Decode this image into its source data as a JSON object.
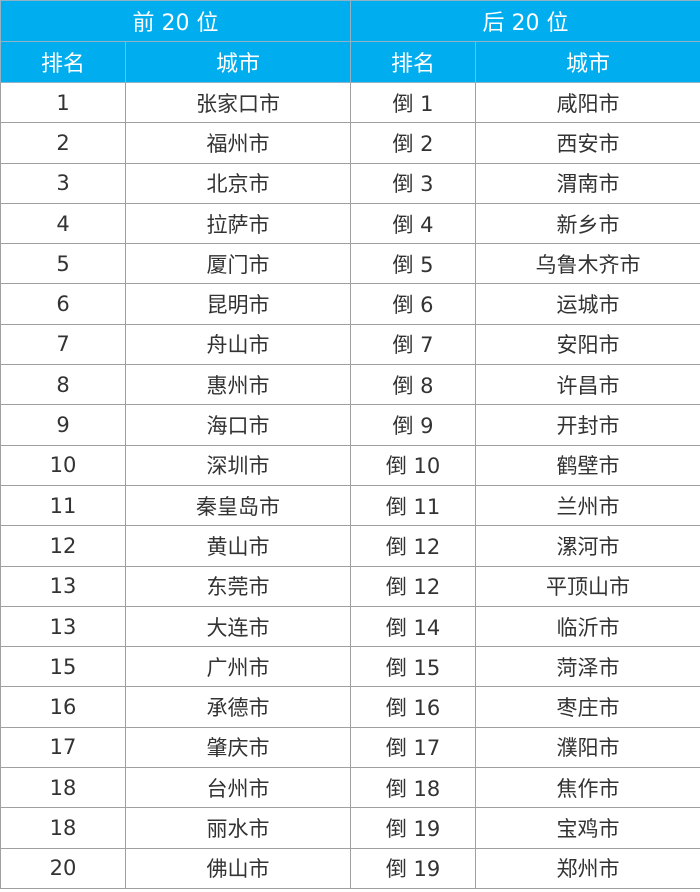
{
  "header": {
    "top_group": "前 20 位",
    "bottom_group": "后 20 位",
    "rank_label": "排名",
    "city_label": "城市"
  },
  "colors": {
    "header_bg": "#00aeef",
    "header_text": "#ffffff"
  },
  "rows": [
    {
      "top_rank": "1",
      "top_city": "张家口市",
      "bottom_rank": "倒 1",
      "bottom_city": "咸阳市"
    },
    {
      "top_rank": "2",
      "top_city": "福州市",
      "bottom_rank": "倒 2",
      "bottom_city": "西安市"
    },
    {
      "top_rank": "3",
      "top_city": "北京市",
      "bottom_rank": "倒 3",
      "bottom_city": "渭南市"
    },
    {
      "top_rank": "4",
      "top_city": "拉萨市",
      "bottom_rank": "倒 4",
      "bottom_city": "新乡市"
    },
    {
      "top_rank": "5",
      "top_city": "厦门市",
      "bottom_rank": "倒 5",
      "bottom_city": "乌鲁木齐市"
    },
    {
      "top_rank": "6",
      "top_city": "昆明市",
      "bottom_rank": "倒 6",
      "bottom_city": "运城市"
    },
    {
      "top_rank": "7",
      "top_city": "舟山市",
      "bottom_rank": "倒 7",
      "bottom_city": "安阳市"
    },
    {
      "top_rank": "8",
      "top_city": "惠州市",
      "bottom_rank": "倒 8",
      "bottom_city": "许昌市"
    },
    {
      "top_rank": "9",
      "top_city": "海口市",
      "bottom_rank": "倒 9",
      "bottom_city": "开封市"
    },
    {
      "top_rank": "10",
      "top_city": "深圳市",
      "bottom_rank": "倒 10",
      "bottom_city": "鹤壁市"
    },
    {
      "top_rank": "11",
      "top_city": "秦皇岛市",
      "bottom_rank": "倒 11",
      "bottom_city": "兰州市"
    },
    {
      "top_rank": "12",
      "top_city": "黄山市",
      "bottom_rank": "倒 12",
      "bottom_city": "漯河市"
    },
    {
      "top_rank": "13",
      "top_city": "东莞市",
      "bottom_rank": "倒 12",
      "bottom_city": "平顶山市"
    },
    {
      "top_rank": "13",
      "top_city": "大连市",
      "bottom_rank": "倒 14",
      "bottom_city": "临沂市"
    },
    {
      "top_rank": "15",
      "top_city": "广州市",
      "bottom_rank": "倒 15",
      "bottom_city": "菏泽市"
    },
    {
      "top_rank": "16",
      "top_city": "承德市",
      "bottom_rank": "倒 16",
      "bottom_city": "枣庄市"
    },
    {
      "top_rank": "17",
      "top_city": "肇庆市",
      "bottom_rank": "倒 17",
      "bottom_city": "濮阳市"
    },
    {
      "top_rank": "18",
      "top_city": "台州市",
      "bottom_rank": "倒 18",
      "bottom_city": "焦作市"
    },
    {
      "top_rank": "18",
      "top_city": "丽水市",
      "bottom_rank": "倒 19",
      "bottom_city": "宝鸡市"
    },
    {
      "top_rank": "20",
      "top_city": "佛山市",
      "bottom_rank": "倒 19",
      "bottom_city": "郑州市"
    }
  ]
}
